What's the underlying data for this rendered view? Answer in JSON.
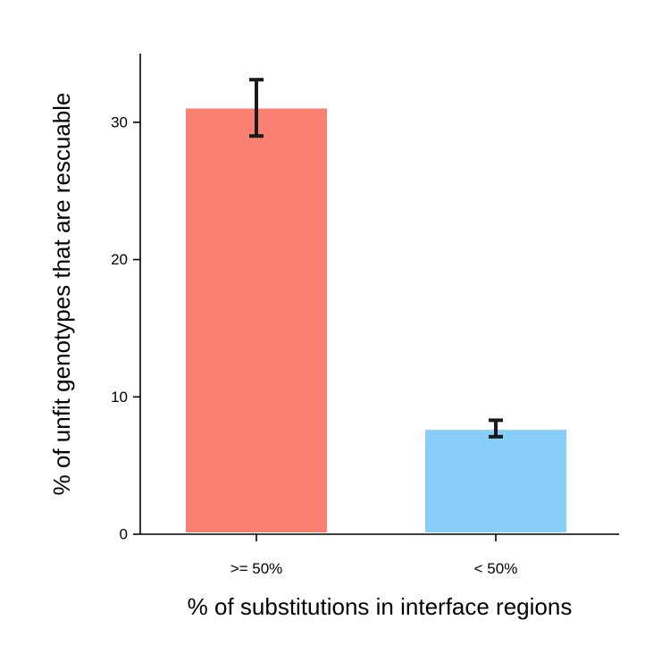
{
  "chart_data": {
    "type": "bar",
    "categories": [
      ">= 50%",
      "< 50%"
    ],
    "values": [
      31.0,
      7.6
    ],
    "errors": [
      {
        "low": 29.0,
        "high": 33.1
      },
      {
        "low": 7.1,
        "high": 8.3
      }
    ],
    "colors": [
      "#fa8072",
      "#87cefa"
    ],
    "error_color": "#1a1a1a",
    "axis_color": "#000000",
    "xlabel": "% of substitutions in interface regions",
    "ylabel": "% of unfit genotypes that are rescuable",
    "ylim": [
      0,
      35
    ],
    "yticks": [
      0,
      10,
      20,
      30
    ],
    "grid": false,
    "legend": "none"
  }
}
